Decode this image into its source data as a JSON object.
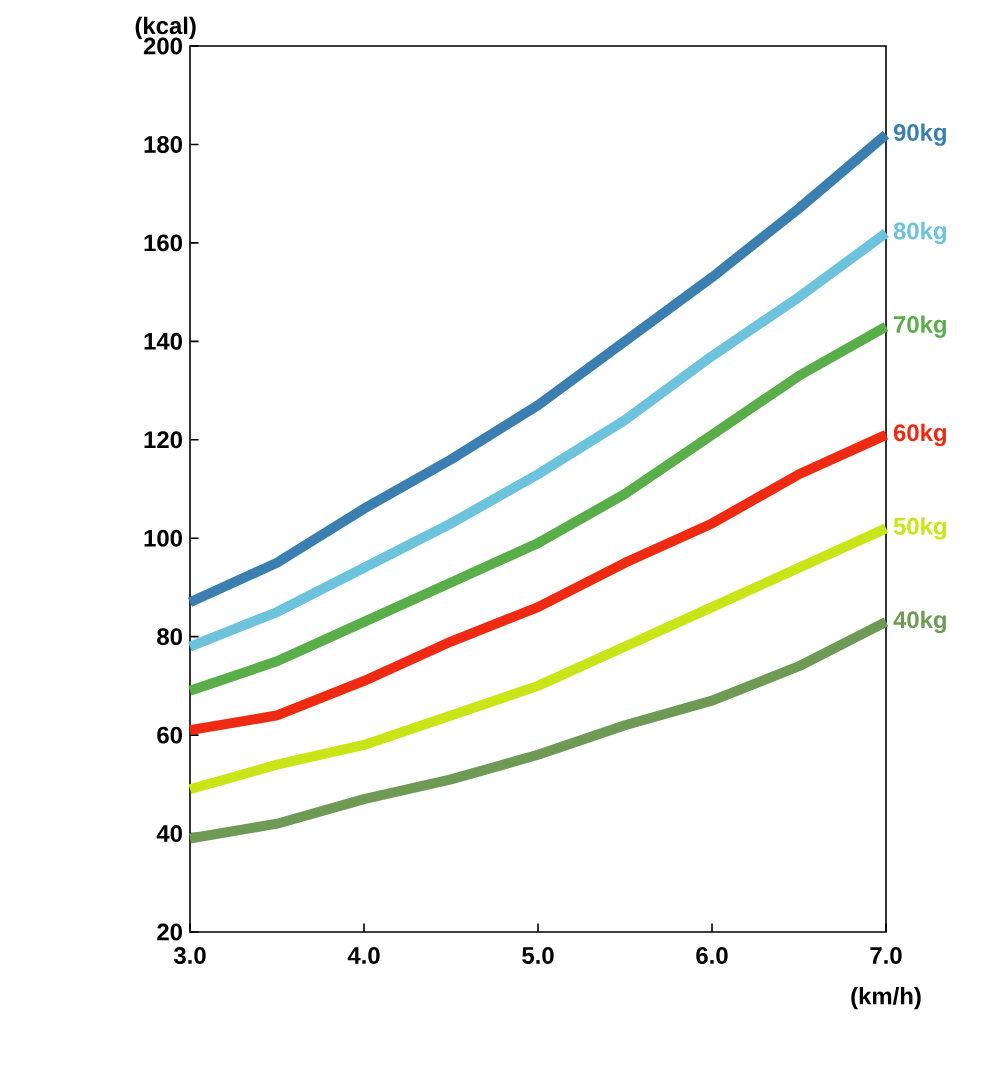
{
  "chart_data": {
    "type": "line",
    "ylabel": "(kcal)",
    "xlabel": "(km/h)",
    "x": [
      3,
      3.5,
      4,
      4.5,
      5,
      5.5,
      6,
      6.5,
      7
    ],
    "series": [
      {
        "name": "90kg",
        "color": "#3a7fb0",
        "values": [
          87,
          95,
          106,
          116,
          127,
          140,
          153,
          167,
          182
        ]
      },
      {
        "name": "80kg",
        "color": "#6cc3db",
        "values": [
          78,
          85,
          94,
          103,
          113,
          124,
          137,
          149,
          162
        ]
      },
      {
        "name": "70kg",
        "color": "#5aae4a",
        "values": [
          69,
          75,
          83,
          91,
          99,
          109,
          121,
          133,
          143
        ]
      },
      {
        "name": "60kg",
        "color": "#ee2a12",
        "values": [
          61,
          64,
          71,
          79,
          86,
          95,
          103,
          113,
          121
        ]
      },
      {
        "name": "50kg",
        "color": "#c8e617",
        "values": [
          49,
          54,
          58,
          64,
          70,
          78,
          86,
          94,
          102
        ]
      },
      {
        "name": "40kg",
        "color": "#6e9a56",
        "values": [
          39,
          42,
          47,
          51,
          56,
          62,
          67,
          74,
          83
        ]
      }
    ],
    "xlim": [
      3,
      7
    ],
    "ylim": [
      20,
      200
    ],
    "xticks": [
      {
        "value": 3,
        "label": "3.0"
      },
      {
        "value": 4,
        "label": "4.0"
      },
      {
        "value": 5,
        "label": "5.0"
      },
      {
        "value": 6,
        "label": "6.0"
      },
      {
        "value": 7,
        "label": "7.0"
      }
    ],
    "yticks": [
      20,
      40,
      60,
      80,
      100,
      120,
      140,
      160,
      180,
      200
    ],
    "grid": false,
    "legend": false,
    "marker": "none",
    "line_style": "solid"
  }
}
